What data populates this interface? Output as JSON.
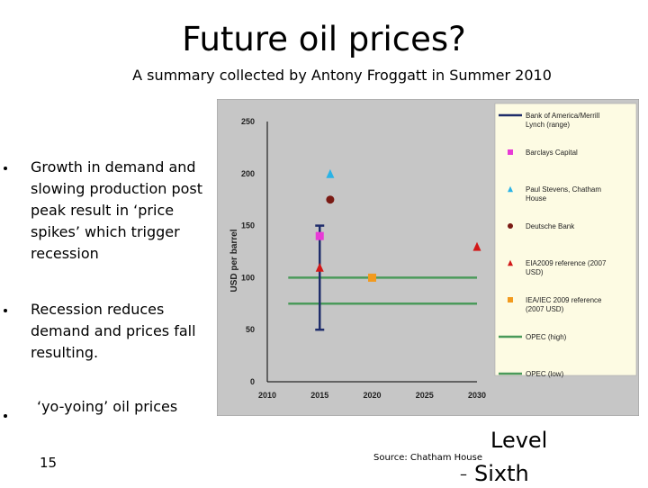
{
  "slide": {
    "title": "Future oil prices?",
    "subtitle": "A summary collected by Antony Froggatt in Summer 2010",
    "bullets": [
      "Growth in demand and\nslowing production post\npeak  result in ‘price\nspikes’ which trigger\nrecession",
      "Recession reduces\ndemand and prices fall\nresulting.",
      "‘yo-yoing’ oil prices"
    ],
    "page_number": "15",
    "source": "Source:  Chatham House",
    "level_text": "Level",
    "sixth_text": "Sixth",
    "dash_glyph": "–"
  },
  "chart_data": {
    "type": "scatter",
    "ylabel": "USD per barrel",
    "xlim": [
      2010,
      2030
    ],
    "ylim": [
      0,
      250
    ],
    "x_ticks": [
      "2010",
      "2015",
      "2020",
      "2025",
      "2030"
    ],
    "y_ticks": [
      "0",
      "50",
      "100",
      "150",
      "200",
      "250"
    ],
    "grid": false,
    "legend_position": "right",
    "background_color": "#c6c6c6",
    "legend_background": "#fdfbe3",
    "ranges": [
      {
        "name": "Bank of America/Merrill Lynch (range)",
        "x": 2015,
        "y_min": 50,
        "y_max": 150,
        "color": "#1f2d6b"
      }
    ],
    "lines": [
      {
        "name": "OPEC (high)",
        "y": 100,
        "x_range": [
          2012,
          2030
        ],
        "color": "#4a9a5a"
      },
      {
        "name": "OPEC (low)",
        "y": 75,
        "x_range": [
          2012,
          2030
        ],
        "color": "#4a9a5a"
      }
    ],
    "points": [
      {
        "name": "Barclays Capital",
        "x": 2015,
        "y": 140,
        "marker": "square",
        "color": "#e83ad6"
      },
      {
        "name": "Paul Stevens, Chatham House",
        "x": 2016,
        "y": 200,
        "marker": "triangle",
        "color": "#2ab3e6"
      },
      {
        "name": "Deutsche Bank",
        "x": 2016,
        "y": 175,
        "marker": "circle",
        "color": "#7a1a14"
      },
      {
        "name": "EIA2009 reference (2007 USD)",
        "x": 2015,
        "y": 110,
        "marker": "triangle",
        "color": "#d21818"
      },
      {
        "name": "EIA2009 reference (2007 USD)",
        "x": 2030,
        "y": 130,
        "marker": "triangle",
        "color": "#d21818"
      },
      {
        "name": "IEA/IEC 2009 reference (2007 USD)",
        "x": 2020,
        "y": 100,
        "marker": "square",
        "color": "#f29a1e"
      }
    ],
    "legend": [
      {
        "label": "Bank of America/Merrill Lynch (range)",
        "marker": "line",
        "color": "#1f2d6b"
      },
      {
        "label": "Barclays Capital",
        "marker": "square",
        "color": "#e83ad6"
      },
      {
        "label": "Paul Stevens, Chatham House",
        "marker": "triangle",
        "color": "#2ab3e6"
      },
      {
        "label": "Deutsche Bank",
        "marker": "circle",
        "color": "#7a1a14"
      },
      {
        "label": "EIA2009 reference (2007 USD)",
        "marker": "triangle",
        "color": "#d21818"
      },
      {
        "label": "IEA/IEC 2009 reference (2007 USD)",
        "marker": "square",
        "color": "#f29a1e"
      },
      {
        "label": "OPEC (high)",
        "marker": "line",
        "color": "#4a9a5a"
      },
      {
        "label": "OPEC (low)",
        "marker": "line",
        "color": "#4a9a5a"
      }
    ]
  }
}
